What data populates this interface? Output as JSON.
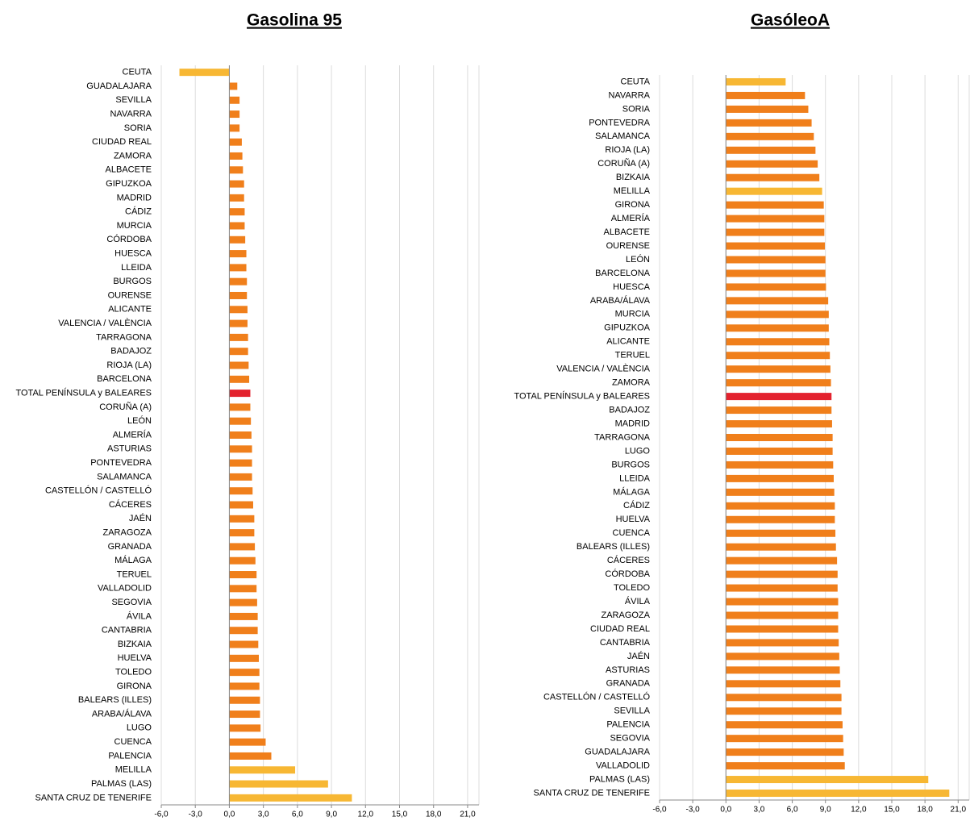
{
  "chart_data": [
    {
      "type": "bar",
      "orientation": "horizontal",
      "title": "Gasolina 95",
      "categories": [
        "CEUTA",
        "GUADALAJARA",
        "SEVILLA",
        "NAVARRA",
        "SORIA",
        "CIUDAD REAL",
        "ZAMORA",
        "ALBACETE",
        "GIPUZKOA",
        "MADRID",
        "CÁDIZ",
        "MURCIA",
        "CÓRDOBA",
        "HUESCA",
        "LLEIDA",
        "BURGOS",
        "OURENSE",
        "ALICANTE",
        "VALENCIA / VALÈNCIA",
        "TARRAGONA",
        "BADAJOZ",
        "RIOJA (LA)",
        "BARCELONA",
        "TOTAL PENÍNSULA y BALEARES",
        "CORUÑA (A)",
        "LEÓN",
        "ALMERÍA",
        "ASTURIAS",
        "PONTEVEDRA",
        "SALAMANCA",
        "CASTELLÓN / CASTELLÓ",
        "CÁCERES",
        "JAÉN",
        "ZARAGOZA",
        "GRANADA",
        "MÁLAGA",
        "TERUEL",
        "VALLADOLID",
        "SEGOVIA",
        "ÁVILA",
        "CANTABRIA",
        "BIZKAIA",
        "HUELVA",
        "TOLEDO",
        "GIRONA",
        "BALEARS (ILLES)",
        "ARABA/ÁLAVA",
        "LUGO",
        "CUENCA",
        "PALENCIA",
        "MELILLA",
        "PALMAS (LAS)",
        "SANTA CRUZ DE TENERIFE"
      ],
      "values": [
        -4.4,
        0.7,
        0.9,
        0.9,
        0.9,
        1.1,
        1.15,
        1.2,
        1.3,
        1.3,
        1.35,
        1.35,
        1.4,
        1.5,
        1.5,
        1.55,
        1.55,
        1.6,
        1.6,
        1.65,
        1.65,
        1.7,
        1.75,
        1.85,
        1.85,
        1.9,
        1.95,
        2.0,
        2.0,
        2.0,
        2.05,
        2.1,
        2.2,
        2.2,
        2.25,
        2.3,
        2.4,
        2.4,
        2.45,
        2.5,
        2.5,
        2.55,
        2.6,
        2.65,
        2.65,
        2.7,
        2.7,
        2.75,
        3.2,
        3.7,
        5.8,
        8.7,
        10.8
      ],
      "colors": [
        "#f7b733",
        "#f07f1b",
        "#f07f1b",
        "#f07f1b",
        "#f07f1b",
        "#f07f1b",
        "#f07f1b",
        "#f07f1b",
        "#f07f1b",
        "#f07f1b",
        "#f07f1b",
        "#f07f1b",
        "#f07f1b",
        "#f07f1b",
        "#f07f1b",
        "#f07f1b",
        "#f07f1b",
        "#f07f1b",
        "#f07f1b",
        "#f07f1b",
        "#f07f1b",
        "#f07f1b",
        "#f07f1b",
        "#e3222e",
        "#f07f1b",
        "#f07f1b",
        "#f07f1b",
        "#f07f1b",
        "#f07f1b",
        "#f07f1b",
        "#f07f1b",
        "#f07f1b",
        "#f07f1b",
        "#f07f1b",
        "#f07f1b",
        "#f07f1b",
        "#f07f1b",
        "#f07f1b",
        "#f07f1b",
        "#f07f1b",
        "#f07f1b",
        "#f07f1b",
        "#f07f1b",
        "#f07f1b",
        "#f07f1b",
        "#f07f1b",
        "#f07f1b",
        "#f07f1b",
        "#f07f1b",
        "#f07f1b",
        "#f7b733",
        "#f7b733",
        "#f7b733"
      ],
      "xlim": [
        -6,
        22
      ],
      "xticks": [
        {
          "value": -6,
          "label": "-6,0"
        },
        {
          "value": -3,
          "label": "-3,0"
        },
        {
          "value": 0,
          "label": "0,0"
        },
        {
          "value": 3,
          "label": "3,0"
        },
        {
          "value": 6,
          "label": "6,0"
        },
        {
          "value": 9,
          "label": "9,0"
        },
        {
          "value": 12,
          "label": "12,0"
        },
        {
          "value": 15,
          "label": "15,0"
        },
        {
          "value": 18,
          "label": "18,0"
        },
        {
          "value": 21,
          "label": "21,0"
        }
      ],
      "grid": true
    },
    {
      "type": "bar",
      "orientation": "horizontal",
      "title": "GasóleoA",
      "categories": [
        "CEUTA",
        "NAVARRA",
        "SORIA",
        "PONTEVEDRA",
        "SALAMANCA",
        "RIOJA (LA)",
        "CORUÑA (A)",
        "BIZKAIA",
        "MELILLA",
        "GIRONA",
        "ALMERÍA",
        "ALBACETE",
        "OURENSE",
        "LEÓN",
        "BARCELONA",
        "HUESCA",
        "ARABA/ÁLAVA",
        "MURCIA",
        "GIPUZKOA",
        "ALICANTE",
        "TERUEL",
        "VALENCIA / VALÈNCIA",
        "ZAMORA",
        "TOTAL PENÍNSULA y BALEARES",
        "BADAJOZ",
        "MADRID",
        "TARRAGONA",
        "LUGO",
        "BURGOS",
        "LLEIDA",
        "MÁLAGA",
        "CÁDIZ",
        "HUELVA",
        "CUENCA",
        "BALEARS (ILLES)",
        "CÁCERES",
        "CÓRDOBA",
        "TOLEDO",
        "ÁVILA",
        "ZARAGOZA",
        "CIUDAD REAL",
        "CANTABRIA",
        "JAÉN",
        "ASTURIAS",
        "GRANADA",
        "CASTELLÓN / CASTELLÓ",
        "SEVILLA",
        "PALENCIA",
        "SEGOVIA",
        "GUADALAJARA",
        "VALLADOLID",
        "PALMAS (LAS)",
        "SANTA CRUZ DE TENERIFE"
      ],
      "values": [
        5.4,
        7.15,
        7.45,
        7.75,
        7.95,
        8.1,
        8.3,
        8.45,
        8.7,
        8.85,
        8.9,
        8.9,
        8.95,
        9.0,
        9.0,
        9.05,
        9.25,
        9.3,
        9.3,
        9.35,
        9.4,
        9.45,
        9.5,
        9.55,
        9.55,
        9.6,
        9.65,
        9.65,
        9.7,
        9.75,
        9.8,
        9.85,
        9.85,
        9.9,
        9.95,
        10.05,
        10.1,
        10.1,
        10.15,
        10.15,
        10.15,
        10.2,
        10.25,
        10.3,
        10.35,
        10.45,
        10.45,
        10.55,
        10.6,
        10.65,
        10.75,
        18.3,
        20.2
      ],
      "colors": [
        "#f7b733",
        "#f07f1b",
        "#f07f1b",
        "#f07f1b",
        "#f07f1b",
        "#f07f1b",
        "#f07f1b",
        "#f07f1b",
        "#f7b733",
        "#f07f1b",
        "#f07f1b",
        "#f07f1b",
        "#f07f1b",
        "#f07f1b",
        "#f07f1b",
        "#f07f1b",
        "#f07f1b",
        "#f07f1b",
        "#f07f1b",
        "#f07f1b",
        "#f07f1b",
        "#f07f1b",
        "#f07f1b",
        "#e3222e",
        "#f07f1b",
        "#f07f1b",
        "#f07f1b",
        "#f07f1b",
        "#f07f1b",
        "#f07f1b",
        "#f07f1b",
        "#f07f1b",
        "#f07f1b",
        "#f07f1b",
        "#f07f1b",
        "#f07f1b",
        "#f07f1b",
        "#f07f1b",
        "#f07f1b",
        "#f07f1b",
        "#f07f1b",
        "#f07f1b",
        "#f07f1b",
        "#f07f1b",
        "#f07f1b",
        "#f07f1b",
        "#f07f1b",
        "#f07f1b",
        "#f07f1b",
        "#f07f1b",
        "#f07f1b",
        "#f7b733",
        "#f7b733"
      ],
      "xlim": [
        -6,
        22
      ],
      "xticks": [
        {
          "value": -6,
          "label": "-6,0"
        },
        {
          "value": -3,
          "label": "-3,0"
        },
        {
          "value": 0,
          "label": "0,0"
        },
        {
          "value": 3,
          "label": "3,0"
        },
        {
          "value": 6,
          "label": "6,0"
        },
        {
          "value": 9,
          "label": "9,0"
        },
        {
          "value": 12,
          "label": "12,0"
        },
        {
          "value": 15,
          "label": "15,0"
        },
        {
          "value": 18,
          "label": "18,0"
        },
        {
          "value": 21,
          "label": "21,0"
        }
      ],
      "grid": true
    }
  ]
}
